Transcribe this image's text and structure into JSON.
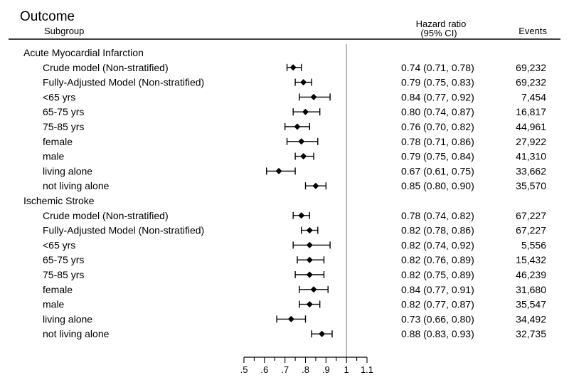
{
  "header": {
    "outcome_label": "Outcome",
    "subgroup_label": "Subgroup",
    "hr_label_line1": "Hazard ratio",
    "hr_label_line2": "(95% CI)",
    "events_label": "Events"
  },
  "chart_data": {
    "type": "forest",
    "xlim": [
      0.5,
      1.1
    ],
    "reference_line": 1,
    "x_ticks": [
      0.5,
      0.6,
      0.7,
      0.8,
      0.9,
      1,
      1.1
    ],
    "x_tick_labels": [
      ".5",
      ".6",
      ".7",
      ".8",
      ".9",
      "1",
      "1.1"
    ],
    "groups": [
      {
        "name": "Acute Myocardial Infarction",
        "rows": [
          {
            "label": "Crude model (Non-stratified)",
            "hr": 0.74,
            "lo": 0.71,
            "hi": 0.78,
            "hr_text": "0.74 (0.71, 0.78)",
            "events": "69,232"
          },
          {
            "label": "Fully-Adjusted Model (Non-stratified)",
            "hr": 0.79,
            "lo": 0.75,
            "hi": 0.83,
            "hr_text": "0.79 (0.75, 0.83)",
            "events": "69,232"
          },
          {
            "label": "<65 yrs",
            "hr": 0.84,
            "lo": 0.77,
            "hi": 0.92,
            "hr_text": "0.84 (0.77, 0.92)",
            "events": "7,454"
          },
          {
            "label": "65-75 yrs",
            "hr": 0.8,
            "lo": 0.74,
            "hi": 0.87,
            "hr_text": "0.80 (0.74, 0.87)",
            "events": "16,817"
          },
          {
            "label": "75-85 yrs",
            "hr": 0.76,
            "lo": 0.7,
            "hi": 0.82,
            "hr_text": "0.76 (0.70, 0.82)",
            "events": "44,961"
          },
          {
            "label": "female",
            "hr": 0.78,
            "lo": 0.71,
            "hi": 0.86,
            "hr_text": "0.78 (0.71, 0.86)",
            "events": "27,922"
          },
          {
            "label": "male",
            "hr": 0.79,
            "lo": 0.75,
            "hi": 0.84,
            "hr_text": "0.79 (0.75, 0.84)",
            "events": "41,310"
          },
          {
            "label": "living alone",
            "hr": 0.67,
            "lo": 0.61,
            "hi": 0.75,
            "hr_text": "0.67 (0.61, 0.75)",
            "events": "33,662"
          },
          {
            "label": "not living alone",
            "hr": 0.85,
            "lo": 0.8,
            "hi": 0.9,
            "hr_text": "0.85 (0.80, 0.90)",
            "events": "35,570"
          }
        ]
      },
      {
        "name": "Ischemic Stroke",
        "rows": [
          {
            "label": "Crude model (Non-stratified)",
            "hr": 0.78,
            "lo": 0.74,
            "hi": 0.82,
            "hr_text": "0.78 (0.74, 0.82)",
            "events": "67,227"
          },
          {
            "label": "Fully-Adjusted Model (Non-stratified)",
            "hr": 0.82,
            "lo": 0.78,
            "hi": 0.86,
            "hr_text": "0.82 (0.78, 0.86)",
            "events": "67,227"
          },
          {
            "label": "<65 yrs",
            "hr": 0.82,
            "lo": 0.74,
            "hi": 0.92,
            "hr_text": "0.82 (0.74, 0.92)",
            "events": "5,556"
          },
          {
            "label": "65-75 yrs",
            "hr": 0.82,
            "lo": 0.76,
            "hi": 0.89,
            "hr_text": "0.82 (0.76, 0.89)",
            "events": "15,432"
          },
          {
            "label": "75-85 yrs",
            "hr": 0.82,
            "lo": 0.75,
            "hi": 0.89,
            "hr_text": "0.82 (0.75, 0.89)",
            "events": "46,239"
          },
          {
            "label": "female",
            "hr": 0.84,
            "lo": 0.77,
            "hi": 0.91,
            "hr_text": "0.84 (0.77, 0.91)",
            "events": "31,680"
          },
          {
            "label": "male",
            "hr": 0.82,
            "lo": 0.77,
            "hi": 0.87,
            "hr_text": "0.82 (0.77, 0.87)",
            "events": "35,547"
          },
          {
            "label": "living alone",
            "hr": 0.73,
            "lo": 0.66,
            "hi": 0.8,
            "hr_text": "0.73 (0.66, 0.80)",
            "events": "34,492"
          },
          {
            "label": "not living alone",
            "hr": 0.88,
            "lo": 0.83,
            "hi": 0.93,
            "hr_text": "0.88 (0.83, 0.93)",
            "events": "32,735"
          }
        ]
      }
    ]
  }
}
